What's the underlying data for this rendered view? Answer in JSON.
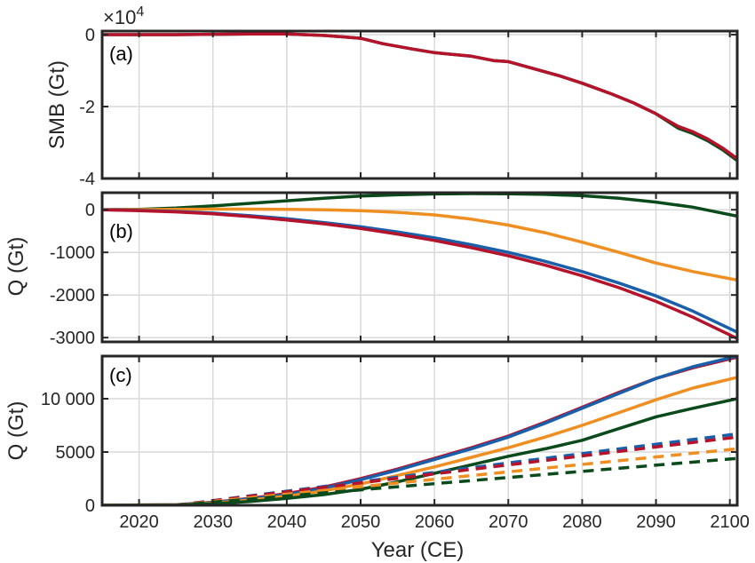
{
  "figure": {
    "xlabel": "Year (CE)",
    "xlim": [
      2015,
      2101
    ],
    "xticks": [
      2020,
      2030,
      2040,
      2050,
      2060,
      2070,
      2080,
      2090,
      2100
    ],
    "grid": true,
    "colors": {
      "green": "#0b4a1a",
      "orange": "#ef8f22",
      "blue": "#1a5faa",
      "red": "#b5132c",
      "axis": "#262626",
      "grid": "#d9d9d9"
    }
  },
  "chart_data": [
    {
      "type": "line",
      "panel_label": "(a)",
      "ylabel": "SMB (Gt)",
      "exponent_label": "×10",
      "exponent_power": "4",
      "ylim": [
        -4,
        0.1
      ],
      "yticks": [
        0,
        -2,
        -4
      ],
      "ytick_labels": [
        "0",
        "-2",
        "-4"
      ],
      "series": [
        {
          "color": "#0b4a1a",
          "style": "solid",
          "x": [
            2015,
            2020,
            2025,
            2030,
            2035,
            2040,
            2045,
            2050,
            2053,
            2057,
            2060,
            2065,
            2068,
            2070,
            2073,
            2077,
            2080,
            2084,
            2087,
            2090,
            2093,
            2095,
            2097,
            2099,
            2101
          ],
          "y": [
            0,
            0,
            0,
            0.01,
            0.02,
            0.02,
            -0.02,
            -0.1,
            -0.25,
            -0.4,
            -0.5,
            -0.6,
            -0.72,
            -0.75,
            -0.92,
            -1.15,
            -1.35,
            -1.65,
            -1.9,
            -2.2,
            -2.6,
            -2.75,
            -2.95,
            -3.2,
            -3.5
          ]
        },
        {
          "color": "#b5132c",
          "style": "solid",
          "x": [
            2015,
            2020,
            2025,
            2030,
            2035,
            2040,
            2045,
            2050,
            2053,
            2057,
            2060,
            2065,
            2068,
            2070,
            2073,
            2077,
            2080,
            2084,
            2087,
            2090,
            2093,
            2095,
            2097,
            2099,
            2101
          ],
          "y": [
            0,
            0,
            0,
            0.01,
            0.02,
            0.02,
            -0.02,
            -0.1,
            -0.25,
            -0.4,
            -0.5,
            -0.6,
            -0.72,
            -0.75,
            -0.92,
            -1.15,
            -1.35,
            -1.65,
            -1.9,
            -2.2,
            -2.55,
            -2.7,
            -2.9,
            -3.15,
            -3.45
          ]
        }
      ]
    },
    {
      "type": "line",
      "panel_label": "(b)",
      "ylabel": "Q (Gt)",
      "ylim": [
        -3100,
        400
      ],
      "yticks": [
        0,
        -1000,
        -2000,
        -3000
      ],
      "ytick_labels": [
        "0",
        "-1000",
        "-2000",
        "-3000"
      ],
      "series": [
        {
          "color": "#0b4a1a",
          "style": "solid",
          "x": [
            2015,
            2020,
            2025,
            2030,
            2035,
            2040,
            2045,
            2050,
            2055,
            2060,
            2065,
            2070,
            2075,
            2080,
            2085,
            2090,
            2095,
            2101
          ],
          "y": [
            0,
            10,
            40,
            90,
            150,
            210,
            270,
            320,
            350,
            370,
            380,
            375,
            360,
            330,
            270,
            180,
            60,
            -150
          ]
        },
        {
          "color": "#ef8f22",
          "style": "solid",
          "x": [
            2015,
            2020,
            2025,
            2030,
            2035,
            2040,
            2045,
            2050,
            2055,
            2060,
            2065,
            2070,
            2075,
            2080,
            2085,
            2090,
            2095,
            2101
          ],
          "y": [
            0,
            5,
            10,
            15,
            15,
            10,
            0,
            -20,
            -60,
            -120,
            -220,
            -360,
            -540,
            -760,
            -1000,
            -1250,
            -1450,
            -1650
          ]
        },
        {
          "color": "#1a5faa",
          "style": "solid",
          "x": [
            2015,
            2020,
            2025,
            2030,
            2035,
            2040,
            2045,
            2050,
            2055,
            2060,
            2065,
            2070,
            2075,
            2080,
            2085,
            2090,
            2095,
            2101
          ],
          "y": [
            0,
            -15,
            -40,
            -80,
            -140,
            -210,
            -300,
            -400,
            -520,
            -660,
            -820,
            -1000,
            -1210,
            -1450,
            -1720,
            -2020,
            -2380,
            -2870
          ]
        },
        {
          "color": "#b5132c",
          "style": "solid",
          "x": [
            2015,
            2020,
            2025,
            2030,
            2035,
            2040,
            2045,
            2050,
            2055,
            2060,
            2065,
            2070,
            2075,
            2080,
            2085,
            2090,
            2095,
            2101
          ],
          "y": [
            0,
            -20,
            -50,
            -95,
            -160,
            -240,
            -330,
            -440,
            -570,
            -720,
            -890,
            -1080,
            -1300,
            -1550,
            -1830,
            -2150,
            -2520,
            -3020
          ]
        }
      ]
    },
    {
      "type": "line",
      "panel_label": "(c)",
      "ylabel": "Q (Gt)",
      "ylim": [
        0,
        14000
      ],
      "yticks": [
        0,
        5000,
        10000
      ],
      "ytick_labels": [
        "0",
        "5000",
        "10 000"
      ],
      "series": [
        {
          "color": "#b5132c",
          "style": "solid",
          "x": [
            2015,
            2025,
            2030,
            2035,
            2040,
            2045,
            2050,
            2055,
            2060,
            2065,
            2070,
            2075,
            2080,
            2085,
            2090,
            2095,
            2101
          ],
          "y": [
            0,
            50,
            280,
            650,
            1100,
            1700,
            2500,
            3400,
            4400,
            5400,
            6500,
            7800,
            9200,
            10600,
            11900,
            12900,
            13900
          ]
        },
        {
          "color": "#1a5faa",
          "style": "solid",
          "x": [
            2015,
            2025,
            2030,
            2035,
            2040,
            2045,
            2050,
            2055,
            2060,
            2065,
            2070,
            2075,
            2080,
            2085,
            2090,
            2095,
            2101
          ],
          "y": [
            0,
            40,
            250,
            600,
            1000,
            1600,
            2400,
            3300,
            4300,
            5300,
            6400,
            7700,
            9100,
            10500,
            11900,
            13000,
            14000
          ]
        },
        {
          "color": "#ef8f22",
          "style": "solid",
          "x": [
            2015,
            2025,
            2030,
            2035,
            2040,
            2045,
            2050,
            2055,
            2060,
            2065,
            2070,
            2075,
            2080,
            2085,
            2090,
            2095,
            2101
          ],
          "y": [
            0,
            30,
            200,
            480,
            850,
            1350,
            2000,
            2800,
            3600,
            4500,
            5400,
            6400,
            7500,
            8700,
            9900,
            11000,
            12000
          ]
        },
        {
          "color": "#0b4a1a",
          "style": "solid",
          "x": [
            2015,
            2025,
            2030,
            2035,
            2040,
            2045,
            2050,
            2055,
            2060,
            2065,
            2070,
            2075,
            2080,
            2085,
            2090,
            2095,
            2101
          ],
          "y": [
            0,
            20,
            150,
            350,
            650,
            1000,
            1500,
            2200,
            3000,
            3800,
            4600,
            5300,
            6100,
            7200,
            8300,
            9100,
            10000
          ]
        },
        {
          "color": "#1a5faa",
          "style": "dashed",
          "x": [
            2025,
            2101
          ],
          "y": [
            0,
            6700
          ]
        },
        {
          "color": "#b5132c",
          "style": "dashed",
          "x": [
            2025,
            2101
          ],
          "y": [
            0,
            6400
          ]
        },
        {
          "color": "#ef8f22",
          "style": "dashed",
          "x": [
            2025,
            2101
          ],
          "y": [
            0,
            5300
          ]
        },
        {
          "color": "#0b4a1a",
          "style": "dashed",
          "x": [
            2025,
            2101
          ],
          "y": [
            0,
            4400
          ]
        }
      ]
    }
  ]
}
